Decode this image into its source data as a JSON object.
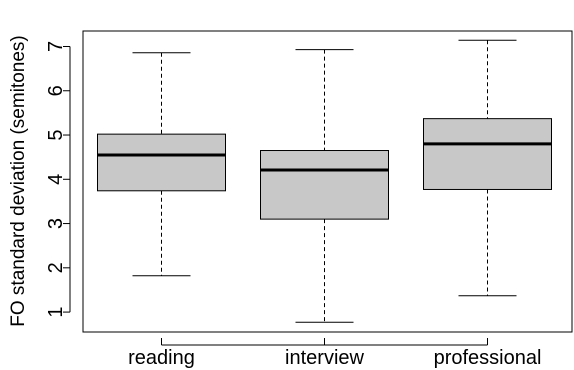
{
  "chart_data": {
    "type": "boxplot",
    "title": "",
    "xlabel": "",
    "ylabel": "FO standard deviation (semitones)",
    "categories": [
      "reading",
      "interview",
      "professional"
    ],
    "yticks": [
      1,
      2,
      3,
      4,
      5,
      6,
      7
    ],
    "ylim": [
      0.55,
      7.35
    ],
    "grid": false,
    "box_fill": "#c8c8c8",
    "series": [
      {
        "category": "reading",
        "whisker_low": 1.82,
        "q1": 3.74,
        "median": 4.55,
        "q3": 5.02,
        "whisker_high": 6.86
      },
      {
        "category": "interview",
        "whisker_low": 0.77,
        "q1": 3.1,
        "median": 4.21,
        "q3": 4.65,
        "whisker_high": 6.93
      },
      {
        "category": "professional",
        "whisker_low": 1.37,
        "q1": 3.77,
        "median": 4.8,
        "q3": 5.37,
        "whisker_high": 7.14
      }
    ]
  }
}
